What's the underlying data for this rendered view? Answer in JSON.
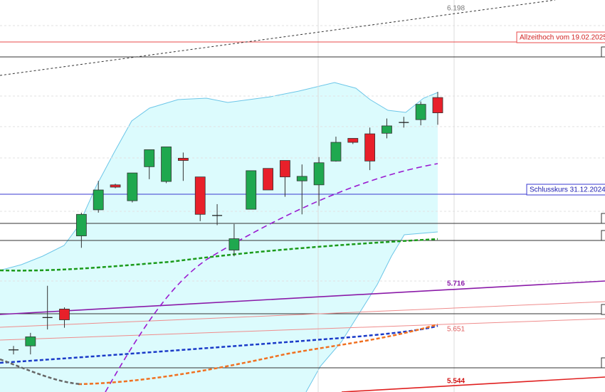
{
  "chart_data": {
    "type": "candlestick",
    "ylim": [
      5.5257,
      6.217
    ],
    "up_color": "#1fa84f",
    "down_color": "#e8202a",
    "open": [
      5.6,
      5.607,
      5.657,
      5.672,
      5.801,
      5.847,
      5.891,
      5.863,
      5.923,
      5.897,
      5.938,
      5.905,
      5.837,
      5.776,
      5.848,
      5.92,
      5.934,
      5.898,
      5.891,
      5.933,
      5.973,
      5.981,
      5.982,
      6.001,
      6.006,
      6.045
    ],
    "high": [
      5.607,
      5.63,
      5.713,
      5.675,
      5.842,
      5.898,
      5.893,
      5.912,
      5.953,
      5.958,
      5.948,
      5.905,
      5.857,
      5.822,
      5.916,
      5.92,
      5.934,
      5.927,
      5.94,
      5.976,
      5.973,
      5.992,
      6.008,
      6.011,
      6.038,
      6.055
    ],
    "low": [
      5.592,
      5.592,
      5.636,
      5.639,
      5.78,
      5.842,
      5.885,
      5.86,
      5.901,
      5.894,
      5.898,
      5.827,
      5.82,
      5.765,
      5.848,
      5.882,
      5.87,
      5.839,
      5.854,
      5.932,
      5.963,
      5.917,
      5.973,
      5.992,
      5.996,
      5.997
    ],
    "close": [
      5.6,
      5.623,
      5.657,
      5.653,
      5.839,
      5.882,
      5.887,
      5.912,
      5.953,
      5.958,
      5.934,
      5.839,
      5.837,
      5.796,
      5.916,
      5.882,
      5.905,
      5.906,
      5.93,
      5.966,
      5.966,
      5.933,
      5.995,
      6.001,
      6.033,
      6.018
    ],
    "annotations": [
      "6.198",
      "Allzeithoch vom 19.02.2025 /",
      "Schlusskurs 31.12.2024 -",
      "5.716",
      "5.651",
      "5.544"
    ]
  }
}
